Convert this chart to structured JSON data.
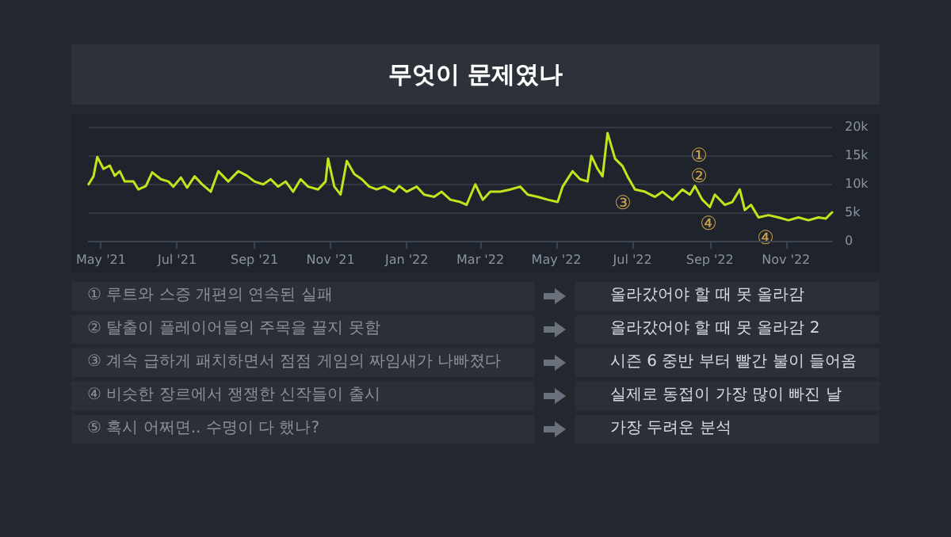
{
  "chart_data": [
    {
      "type": "line",
      "title": "무엇이 문제였나",
      "x": [
        "2021-04-21",
        "2021-04-25",
        "2021-04-28",
        "2021-05-03",
        "2021-05-08",
        "2021-05-12",
        "2021-05-16",
        "2021-05-20",
        "2021-05-27",
        "2021-05-31",
        "2021-06-06",
        "2021-06-11",
        "2021-06-18",
        "2021-06-24",
        "2021-06-28",
        "2021-07-04",
        "2021-07-09",
        "2021-07-15",
        "2021-07-21",
        "2021-07-28",
        "2021-08-03",
        "2021-08-11",
        "2021-08-19",
        "2021-08-26",
        "2021-09-01",
        "2021-09-08",
        "2021-09-14",
        "2021-09-20",
        "2021-09-26",
        "2021-10-02",
        "2021-10-08",
        "2021-10-14",
        "2021-10-22",
        "2021-10-28",
        "2021-10-30",
        "2021-11-04",
        "2021-11-09",
        "2021-11-14",
        "2021-11-20",
        "2021-11-26",
        "2021-12-02",
        "2021-12-08",
        "2021-12-14",
        "2021-12-22",
        "2021-12-26",
        "2022-01-01",
        "2022-01-09",
        "2022-01-15",
        "2022-01-23",
        "2022-01-29",
        "2022-02-05",
        "2022-02-13",
        "2022-02-18",
        "2022-02-25",
        "2022-03-03",
        "2022-03-09",
        "2022-03-17",
        "2022-03-25",
        "2022-04-02",
        "2022-04-08",
        "2022-04-16",
        "2022-04-24",
        "2022-05-02",
        "2022-05-06",
        "2022-05-14",
        "2022-05-20",
        "2022-05-26",
        "2022-05-29",
        "2022-06-03",
        "2022-06-07",
        "2022-06-11",
        "2022-06-17",
        "2022-06-23",
        "2022-06-27",
        "2022-07-03",
        "2022-07-11",
        "2022-07-19",
        "2022-07-25",
        "2022-08-02",
        "2022-08-10",
        "2022-08-16",
        "2022-08-20",
        "2022-08-26",
        "2022-09-01",
        "2022-09-05",
        "2022-09-13",
        "2022-09-19",
        "2022-09-25",
        "2022-09-29",
        "2022-10-04",
        "2022-10-10",
        "2022-10-18",
        "2022-10-26",
        "2022-11-03",
        "2022-11-11",
        "2022-11-19",
        "2022-11-27",
        "2022-12-03",
        "2022-12-08"
      ],
      "series": [
        {
          "color": "#c5e31c",
          "values": [
            9900,
            11300,
            14700,
            12600,
            13200,
            11400,
            12200,
            10400,
            10400,
            9000,
            9600,
            12000,
            10800,
            10400,
            9500,
            11100,
            9300,
            11300,
            9900,
            8600,
            12200,
            10400,
            12200,
            11400,
            10400,
            9900,
            10800,
            9500,
            10400,
            8600,
            10800,
            9500,
            9000,
            10400,
            14400,
            9500,
            8100,
            14000,
            11700,
            10800,
            9500,
            9000,
            9500,
            8600,
            9600,
            8600,
            9500,
            8100,
            7700,
            8600,
            7200,
            6800,
            6300,
            9900,
            7200,
            8600,
            8600,
            9000,
            9500,
            8100,
            7700,
            7200,
            6800,
            9500,
            12200,
            10800,
            10400,
            14900,
            12600,
            11300,
            18900,
            14400,
            13100,
            11300,
            9000,
            8600,
            7700,
            8600,
            7200,
            9000,
            8100,
            9600,
            7200,
            5900,
            8100,
            6300,
            6800,
            9000,
            5400,
            6300,
            4100,
            4500,
            4100,
            3600,
            4100,
            3600,
            4100,
            3900,
            5000
          ]
        }
      ],
      "xlim": [
        "2021-04-21",
        "2022-12-08"
      ],
      "xticks": [
        {
          "value": "2021-05-01",
          "label": "May '21"
        },
        {
          "value": "2021-07-01",
          "label": "Jul '21"
        },
        {
          "value": "2021-09-01",
          "label": "Sep '21"
        },
        {
          "value": "2021-11-01",
          "label": "Nov '21"
        },
        {
          "value": "2022-01-01",
          "label": "Jan '22"
        },
        {
          "value": "2022-03-01",
          "label": "Mar '22"
        },
        {
          "value": "2022-05-01",
          "label": "May '22"
        },
        {
          "value": "2022-07-01",
          "label": "Jul '22"
        },
        {
          "value": "2022-09-01",
          "label": "Sep '22"
        },
        {
          "value": "2022-11-01",
          "label": "Nov '22"
        }
      ],
      "ylim": [
        0,
        20000
      ],
      "yticks": [
        0,
        {
          "value": 5000,
          "label": "5k"
        },
        {
          "value": 10000,
          "label": "10k"
        },
        {
          "value": 15000,
          "label": "15k"
        },
        {
          "value": 20000,
          "label": "20k"
        }
      ],
      "grid": "y",
      "marker": "none",
      "line_style": "solid",
      "annotations": [
        "①",
        "②",
        "③",
        "④",
        "④"
      ]
    },
    {
      "type": "other",
      "annotations": [
        "① 루트와 스증 개편의 연속된 실패",
        "올라갔어야 할 때 못 올라감",
        "② 탈출이 플레이어들의 주목을 끌지 못함",
        "올라갔어야 할 때 못 올라감 2",
        "③ 계속 급하게 패치하면서 점점 게임의 짜임새가 나빠졌다",
        "시즌 6 중반 부터 빨간 불이 들어옴",
        "④ 비슷한 장르에서 쟁쟁한 신작들이 출시",
        "실제로 동접이 가장 많이 빠진 날",
        "⑤ 혹시 어쩌면.. 수명이 다 했나?",
        "가장 두려운 분석"
      ]
    }
  ]
}
